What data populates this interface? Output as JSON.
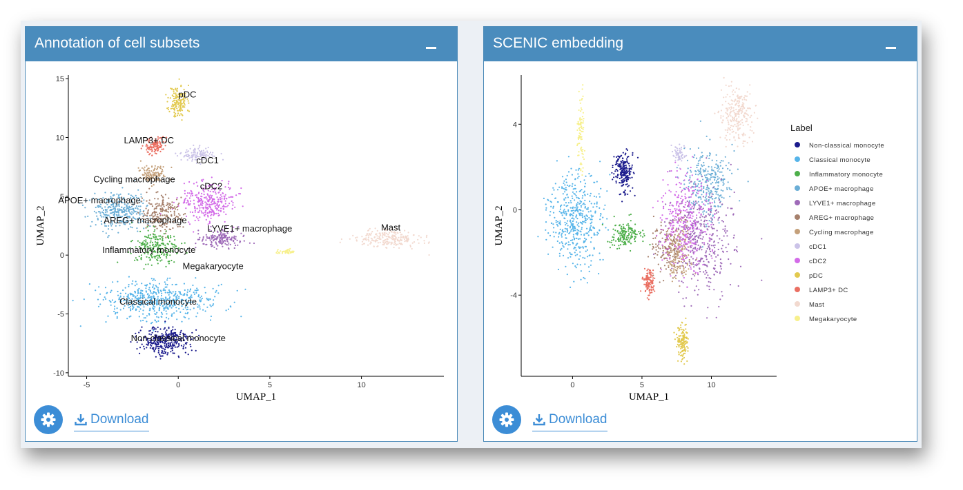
{
  "panels": [
    {
      "title": "Annotation of cell subsets",
      "download_label": "Download"
    },
    {
      "title": "SCENIC embedding",
      "download_label": "Download"
    }
  ],
  "colors": {
    "header": "#4a8cbd",
    "accent": "#3c8dd6",
    "Non-classical monocyte": "#1a1a8c",
    "Classical monocyte": "#56b4e9",
    "Inflammatory monocyte": "#4daf4a",
    "APOE+ macrophage": "#6baed6",
    "LYVE1+ macrophage": "#9e6ab8",
    "AREG+ macrophage": "#a6806c",
    "Cycling macrophage": "#c4a07a",
    "cDC1": "#cbc3e8",
    "cDC2": "#d36be8",
    "pDC": "#e2c94e",
    "LAMP3+ DC": "#ea6f62",
    "Mast": "#f2d9cf",
    "Megakaryocyte": "#f7f08c"
  },
  "chart_data": [
    {
      "type": "scatter",
      "title": "",
      "xlabel": "UMAP_1",
      "ylabel": "UMAP_2",
      "xlim": [
        -6,
        14.5
      ],
      "ylim": [
        -10.3,
        15.3
      ],
      "xticks": [
        -5,
        0,
        5,
        10
      ],
      "yticks": [
        -10,
        -5,
        0,
        5,
        10,
        15
      ],
      "grid": false,
      "legend": "none",
      "labels": [
        {
          "text": "pDC",
          "x": 0.5,
          "y": 13.4
        },
        {
          "text": "LAMP3+ DC",
          "x": -1.6,
          "y": 9.5
        },
        {
          "text": "cDC1",
          "x": 1.6,
          "y": 7.8
        },
        {
          "text": "Cycling macrophage",
          "x": -2.4,
          "y": 6.2
        },
        {
          "text": "cDC2",
          "x": 1.8,
          "y": 5.6
        },
        {
          "text": "APOE+ macrophage",
          "x": -4.3,
          "y": 4.4
        },
        {
          "text": "AREG+ macrophage",
          "x": -1.8,
          "y": 2.7
        },
        {
          "text": "LYVE1+ macrophage",
          "x": 3.9,
          "y": 2.0
        },
        {
          "text": "Mast",
          "x": 11.6,
          "y": 2.1
        },
        {
          "text": "Inflammatory monocyte",
          "x": -1.6,
          "y": 0.2
        },
        {
          "text": "Megakaryocyte",
          "x": 1.9,
          "y": -1.2
        },
        {
          "text": "Classical monocyte",
          "x": -1.1,
          "y": -4.2
        },
        {
          "text": "Non-classical monocyte",
          "x": 0.0,
          "y": -7.3
        }
      ],
      "series": [
        {
          "name": "pDC",
          "cx": 0.0,
          "cy": 13.0,
          "sx": 0.4,
          "sy": 1.2,
          "n": 160
        },
        {
          "name": "LAMP3+ DC",
          "cx": -1.3,
          "cy": 9.3,
          "sx": 0.5,
          "sy": 0.6,
          "n": 120
        },
        {
          "name": "cDC1",
          "cx": 1.0,
          "cy": 8.6,
          "sx": 0.8,
          "sy": 0.5,
          "n": 110
        },
        {
          "name": "Cycling macrophage",
          "cx": -1.4,
          "cy": 7.0,
          "sx": 0.6,
          "sy": 0.6,
          "n": 130
        },
        {
          "name": "cDC2",
          "cx": 1.6,
          "cy": 4.6,
          "sx": 1.3,
          "sy": 1.4,
          "n": 300
        },
        {
          "name": "APOE+ macrophage",
          "cx": -3.2,
          "cy": 3.8,
          "sx": 1.2,
          "sy": 1.3,
          "n": 320
        },
        {
          "name": "AREG+ macrophage",
          "cx": -0.9,
          "cy": 3.6,
          "sx": 0.9,
          "sy": 1.2,
          "n": 220
        },
        {
          "name": "LYVE1+ macrophage",
          "cx": 2.4,
          "cy": 1.4,
          "sx": 1.0,
          "sy": 0.6,
          "n": 170
        },
        {
          "name": "Mast",
          "cx": 11.5,
          "cy": 1.4,
          "sx": 1.6,
          "sy": 0.6,
          "n": 230
        },
        {
          "name": "Inflammatory monocyte",
          "cx": -1.2,
          "cy": 0.7,
          "sx": 1.0,
          "sy": 1.1,
          "n": 220
        },
        {
          "name": "Megakaryocyte",
          "cx": 5.9,
          "cy": 0.3,
          "sx": 0.4,
          "sy": 0.15,
          "n": 40
        },
        {
          "name": "Classical monocyte",
          "cx": -1.0,
          "cy": -3.8,
          "sx": 2.6,
          "sy": 1.3,
          "n": 520
        },
        {
          "name": "Non-classical monocyte",
          "cx": -0.7,
          "cy": -7.3,
          "sx": 1.2,
          "sy": 0.9,
          "n": 320
        }
      ]
    },
    {
      "type": "scatter",
      "title": "",
      "xlabel": "UMAP_1",
      "ylabel": "UMAP_2",
      "xlim": [
        -3.7,
        14.7
      ],
      "ylim": [
        -7.8,
        6.3
      ],
      "xticks": [
        0,
        5,
        10
      ],
      "yticks": [
        -4,
        0,
        4
      ],
      "grid": false,
      "legend": "right",
      "legend_title": "Label",
      "series": [
        {
          "name": "Non-classical monocyte",
          "cx": 3.6,
          "cy": 1.8,
          "sx": 0.6,
          "sy": 0.8,
          "n": 220
        },
        {
          "name": "Classical monocyte",
          "cx": 0.2,
          "cy": -0.5,
          "sx": 1.6,
          "sy": 2.0,
          "n": 480
        },
        {
          "name": "Inflammatory monocyte",
          "cx": 3.8,
          "cy": -1.2,
          "sx": 0.9,
          "sy": 0.5,
          "n": 150
        },
        {
          "name": "APOE+ macrophage",
          "cx": 9.8,
          "cy": 1.2,
          "sx": 1.4,
          "sy": 1.5,
          "n": 300
        },
        {
          "name": "LYVE1+ macrophage",
          "cx": 9.2,
          "cy": -1.5,
          "sx": 2.0,
          "sy": 2.0,
          "n": 420
        },
        {
          "name": "AREG+ macrophage",
          "cx": 7.0,
          "cy": -1.8,
          "sx": 1.0,
          "sy": 1.0,
          "n": 160
        },
        {
          "name": "Cycling macrophage",
          "cx": 7.6,
          "cy": -2.0,
          "sx": 0.8,
          "sy": 1.2,
          "n": 150
        },
        {
          "name": "cDC1",
          "cx": 7.7,
          "cy": 2.6,
          "sx": 0.4,
          "sy": 0.4,
          "n": 60
        },
        {
          "name": "cDC2",
          "cx": 8.0,
          "cy": -0.5,
          "sx": 1.4,
          "sy": 1.9,
          "n": 320
        },
        {
          "name": "pDC",
          "cx": 7.9,
          "cy": -6.2,
          "sx": 0.35,
          "sy": 0.7,
          "n": 140
        },
        {
          "name": "LAMP3+ DC",
          "cx": 5.5,
          "cy": -3.4,
          "sx": 0.3,
          "sy": 0.5,
          "n": 120
        },
        {
          "name": "Mast",
          "cx": 11.8,
          "cy": 4.5,
          "sx": 1.0,
          "sy": 1.1,
          "n": 250
        },
        {
          "name": "Megakaryocyte",
          "cx": 0.6,
          "cy": 3.6,
          "sx": 0.2,
          "sy": 1.4,
          "n": 90
        }
      ]
    }
  ]
}
